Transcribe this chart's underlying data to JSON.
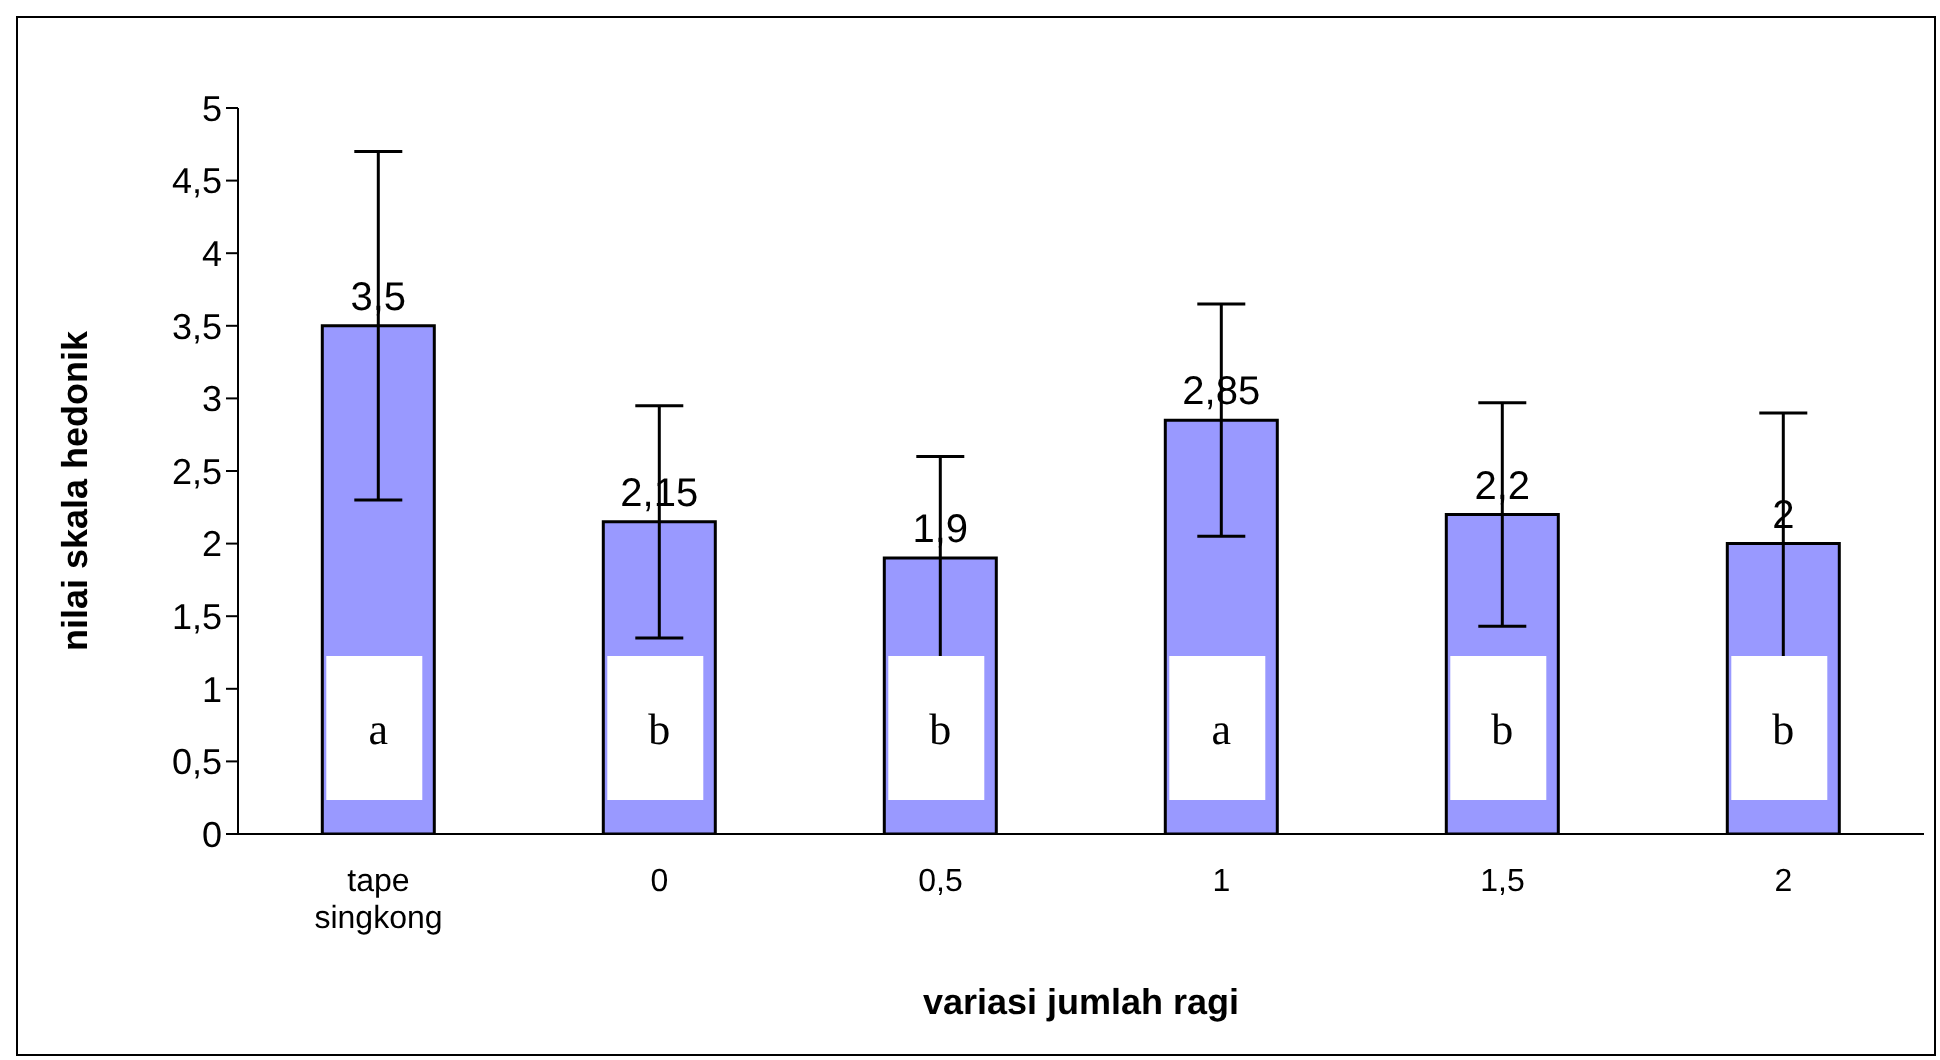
{
  "chart_data": {
    "type": "bar",
    "xlabel": "variasi jumlah ragi",
    "ylabel": "nilai skala hedonik",
    "categories": [
      "tape singkong",
      "0",
      "0,5",
      "1",
      "1,5",
      "2"
    ],
    "values": [
      3.5,
      2.15,
      1.9,
      2.85,
      2.2,
      2
    ],
    "errors": [
      1.2,
      0.8,
      0.7,
      0.8,
      0.77,
      0.9
    ],
    "value_labels": [
      "3,5",
      "2,15",
      "1,9",
      "2,85",
      "2,2",
      "2"
    ],
    "color": "#9999ff",
    "ylim": [
      0,
      5
    ],
    "yticks": [
      0,
      {
        "value": 0.5,
        "label": "0,5"
      },
      1,
      {
        "value": 1.5,
        "label": "1,5"
      },
      2,
      {
        "value": 2.5,
        "label": "2,5"
      },
      3,
      {
        "value": 3.5,
        "label": "3,5"
      },
      4,
      {
        "value": 4.5,
        "label": "4,5"
      },
      5
    ],
    "grid": false,
    "legend": false,
    "annotations": [
      "a",
      "b",
      "b",
      "a",
      "b",
      "b"
    ]
  }
}
